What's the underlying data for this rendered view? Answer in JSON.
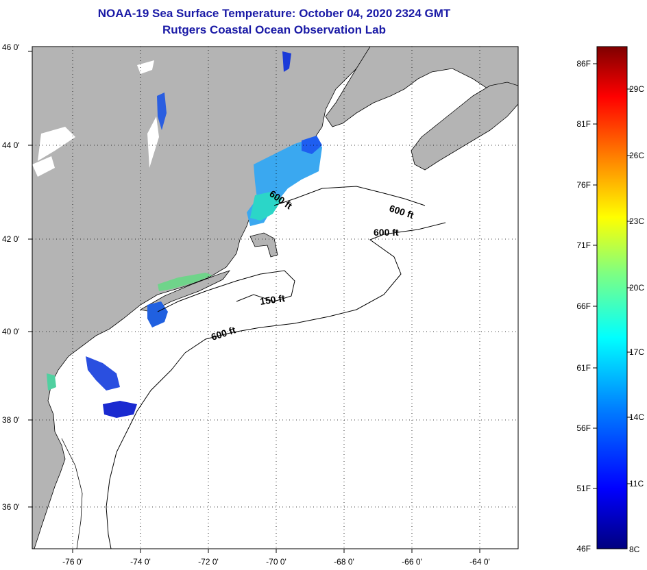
{
  "title": "NOAA-19 Sea Surface Temperature:  October 04, 2020 2324 GMT",
  "subtitle": "Rutgers Coastal Ocean Observation Lab",
  "lat_labels": [
    "46 0'",
    "44 0'",
    "42 0'",
    "40 0'",
    "38 0'",
    "36 0'"
  ],
  "lon_labels": [
    "-76 0'",
    "-74 0'",
    "-72 0'",
    "-70 0'",
    "-68 0'",
    "-66 0'",
    "-64 0'"
  ],
  "contours": [
    {
      "label": "600 ft"
    },
    {
      "label": "600 ft"
    },
    {
      "label": "600 ft"
    },
    {
      "label": "150 ft"
    },
    {
      "label": "600 ft"
    }
  ],
  "colorbar": {
    "fahrenheit": [
      "86F",
      "81F",
      "76F",
      "71F",
      "66F",
      "61F",
      "56F",
      "51F",
      "46F"
    ],
    "celsius": [
      "29C",
      "26C",
      "23C",
      "20C",
      "17C",
      "14C",
      "11C",
      "8C"
    ],
    "colors": [
      "#00007f",
      "#0000ff",
      "#0080ff",
      "#00ffff",
      "#80ff80",
      "#ffff00",
      "#ff8000",
      "#ff0000",
      "#7f0000"
    ]
  },
  "colors": {
    "land": "#b4b4b4",
    "title": "#1a1aa6"
  }
}
